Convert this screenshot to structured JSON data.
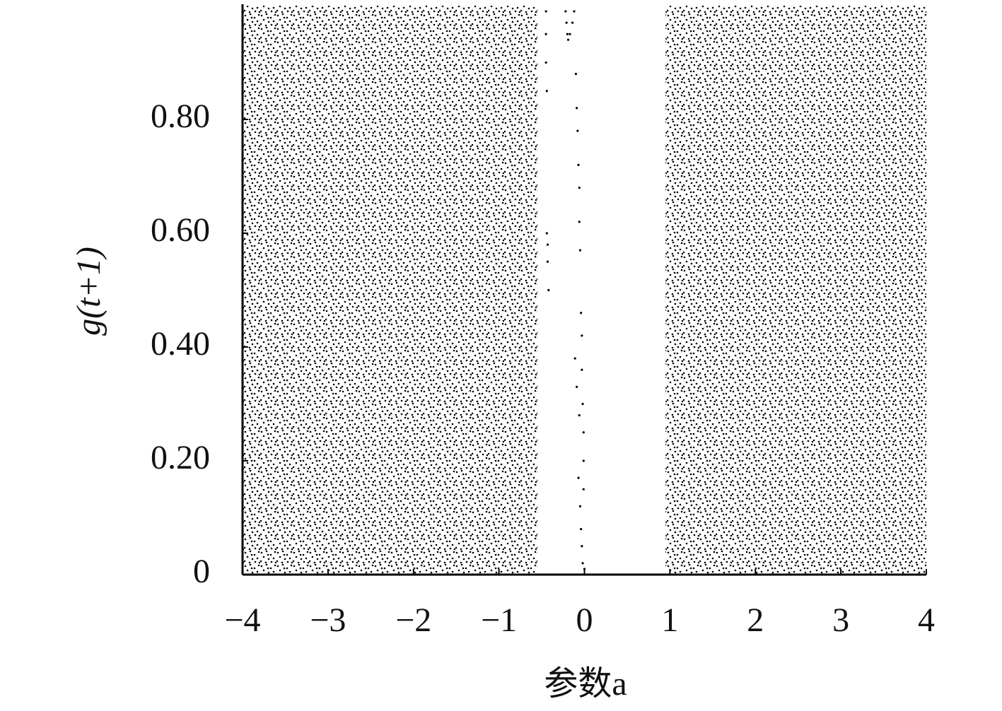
{
  "chart_data": {
    "type": "scatter",
    "x_label": "参数a",
    "y_label": "g(t+1)",
    "xlim": [
      -4,
      4
    ],
    "ylim": [
      0,
      1
    ],
    "xticks": [
      {
        "value": -4,
        "label": "−4"
      },
      {
        "value": -3,
        "label": "−3"
      },
      {
        "value": -2,
        "label": "−2"
      },
      {
        "value": -1,
        "label": "−1"
      },
      0,
      1,
      2,
      3,
      4
    ],
    "yticks": [
      0,
      {
        "value": 0.2,
        "label": "0.20"
      },
      {
        "value": 0.4,
        "label": "0.40"
      },
      {
        "value": 0.6,
        "label": "0.60"
      },
      {
        "value": 0.8,
        "label": "0.80"
      }
    ],
    "color": "#000000",
    "regions": [
      {
        "x": [
          -4,
          -0.55
        ],
        "y": [
          0,
          1
        ]
      },
      {
        "x": [
          0.95,
          4
        ],
        "y": [
          0,
          1
        ]
      }
    ],
    "x": [
      -0.45,
      -0.45,
      -0.45,
      -0.44,
      -0.44,
      -0.43,
      -0.43,
      -0.42,
      -0.22,
      -0.21,
      -0.2,
      -0.19,
      -0.17,
      -0.14,
      -0.12,
      -0.1,
      -0.09,
      -0.08,
      -0.07,
      -0.06,
      -0.06,
      -0.05,
      -0.04,
      -0.03,
      -0.03,
      -0.02,
      -0.01,
      -0.01,
      -0.11,
      -0.09,
      -0.07,
      -0.05,
      -0.04,
      -0.03,
      -0.02,
      -0.06,
      -0.01,
      0.0
    ],
    "y": [
      0.99,
      0.95,
      0.9,
      0.85,
      0.6,
      0.58,
      0.55,
      0.5,
      0.99,
      0.97,
      0.95,
      0.94,
      0.95,
      0.97,
      0.99,
      0.88,
      0.82,
      0.78,
      0.72,
      0.68,
      0.62,
      0.57,
      0.46,
      0.42,
      0.36,
      0.3,
      0.25,
      0.2,
      0.38,
      0.33,
      0.17,
      0.12,
      0.08,
      0.05,
      0.02,
      0.28,
      0.15,
      0.01
    ]
  }
}
